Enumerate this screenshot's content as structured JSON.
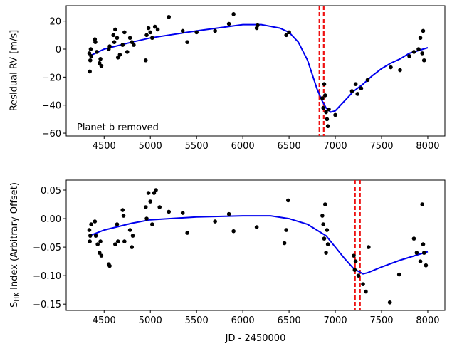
{
  "chart_data": [
    {
      "type": "scatter",
      "ylabel": "Residual RV [m/s]",
      "annotation": "Planet b removed",
      "xlim": [
        4090,
        8185
      ],
      "ylim": [
        -62,
        31
      ],
      "xticks": [
        4500,
        5000,
        5500,
        6000,
        6500,
        7000,
        7500,
        8000
      ],
      "yticks": [
        {
          "value": -60,
          "label": "−60"
        },
        {
          "value": -40,
          "label": "−40"
        },
        {
          "value": -20,
          "label": "−20"
        },
        0,
        20
      ],
      "points": {
        "color": "#000000",
        "x": [
          4340,
          4345,
          4350,
          4355,
          4360,
          4400,
          4405,
          4420,
          4450,
          4460,
          4470,
          4550,
          4560,
          4600,
          4610,
          4620,
          4640,
          4650,
          4670,
          4700,
          4720,
          4750,
          4780,
          4800,
          4820,
          4950,
          4960,
          4980,
          5000,
          5020,
          5050,
          5080,
          5200,
          5350,
          5400,
          5500,
          5700,
          5850,
          5900,
          6150,
          6160,
          6470,
          6500,
          6860,
          6870,
          6880,
          6890,
          6900,
          6910,
          6920,
          6930,
          7000,
          7180,
          7220,
          7240,
          7280,
          7350,
          7600,
          7700,
          7800,
          7850,
          7900,
          7920,
          7950,
          7960,
          7940
        ],
        "y": [
          -3,
          -16,
          -8,
          0,
          -5,
          7,
          5,
          -2,
          -10,
          -7,
          -12,
          0,
          2,
          10,
          5,
          14,
          8,
          -6,
          -4,
          3,
          12,
          -2,
          8,
          5,
          3,
          -8,
          10,
          15,
          12,
          8,
          16,
          14,
          23,
          13,
          5,
          12,
          13,
          18,
          25,
          15,
          17,
          10,
          12,
          -35,
          -42,
          -25,
          -33,
          -45,
          -50,
          -55,
          -43,
          -47,
          -30,
          -25,
          -32,
          -28,
          -22,
          -13,
          -15,
          -5,
          -2,
          0,
          8,
          13,
          -8,
          -3
        ]
      },
      "model": {
        "color": "#0000ee",
        "x": [
          4340,
          4500,
          4800,
          5000,
          5500,
          6000,
          6200,
          6400,
          6500,
          6600,
          6700,
          6800,
          6850,
          6900,
          6950,
          7000,
          7100,
          7200,
          7300,
          7400,
          7500,
          7600,
          7700,
          7800,
          7900,
          8000
        ],
        "y": [
          -5,
          0,
          5,
          8,
          13,
          17.5,
          17.5,
          15,
          12,
          5,
          -8,
          -28,
          -36,
          -42,
          -45,
          -44,
          -37,
          -30,
          -25,
          -19,
          -14,
          -10,
          -7,
          -3,
          -1,
          1
        ]
      },
      "vlines": {
        "color": "#ee1111",
        "x": [
          6828,
          6875
        ]
      }
    },
    {
      "type": "scatter",
      "ylabel_main": "S",
      "ylabel_sub": "HK",
      "ylabel_rest": " Index (Arbitrary Offset)",
      "xlabel": "JD - 2450000",
      "xlim": [
        4090,
        8185
      ],
      "ylim": [
        -0.161,
        0.0675
      ],
      "xticks": [
        4500,
        5000,
        5500,
        6000,
        6500,
        7000,
        7500,
        8000
      ],
      "yticks": [
        {
          "value": -0.15,
          "label": "−0.15"
        },
        {
          "value": -0.1,
          "label": "−0.10"
        },
        {
          "value": -0.05,
          "label": "−0.05"
        },
        {
          "value": 0,
          "label": "0.00"
        },
        0.05
      ],
      "points": {
        "color": "#000000",
        "x": [
          4340,
          4345,
          4350,
          4360,
          4400,
          4410,
          4430,
          4450,
          4460,
          4470,
          4550,
          4560,
          4620,
          4640,
          4650,
          4700,
          4710,
          4720,
          4780,
          4800,
          4810,
          4950,
          4960,
          4980,
          5000,
          5020,
          5040,
          5060,
          5100,
          5200,
          5350,
          5400,
          5700,
          5850,
          5900,
          6150,
          6450,
          6470,
          6490,
          6860,
          6870,
          6880,
          6890,
          6900,
          6910,
          6920,
          7200,
          7210,
          7220,
          7250,
          7300,
          7330,
          7360,
          7590,
          7690,
          7850,
          7880,
          7920,
          7940,
          7950,
          7960,
          7980
        ],
        "y": [
          -0.02,
          -0.04,
          -0.03,
          -0.01,
          -0.005,
          -0.03,
          -0.045,
          -0.06,
          -0.04,
          -0.065,
          -0.08,
          -0.083,
          -0.045,
          -0.01,
          -0.04,
          0.015,
          0.005,
          -0.04,
          -0.02,
          -0.05,
          -0.03,
          0.02,
          0.0,
          0.045,
          0.03,
          -0.01,
          0.045,
          0.05,
          0.02,
          0.012,
          0.01,
          -0.025,
          -0.005,
          0.008,
          -0.022,
          -0.015,
          -0.043,
          -0.02,
          0.032,
          0.005,
          -0.01,
          -0.035,
          0.025,
          -0.06,
          -0.02,
          -0.045,
          -0.065,
          -0.09,
          -0.075,
          -0.1,
          -0.115,
          -0.128,
          -0.05,
          -0.147,
          -0.098,
          -0.035,
          -0.06,
          -0.075,
          0.025,
          -0.045,
          -0.06,
          -0.082
        ]
      },
      "model": {
        "color": "#0000ee",
        "x": [
          4340,
          4500,
          4800,
          5000,
          5500,
          6000,
          6300,
          6500,
          6700,
          6900,
          7000,
          7100,
          7200,
          7300,
          7350,
          7500,
          7700,
          7900,
          8000
        ],
        "y": [
          -0.03,
          -0.02,
          -0.008,
          -0.002,
          0.003,
          0.005,
          0.005,
          0.0,
          -0.01,
          -0.03,
          -0.05,
          -0.07,
          -0.088,
          -0.097,
          -0.095,
          -0.085,
          -0.073,
          -0.063,
          -0.058
        ]
      },
      "vlines": {
        "color": "#ee1111",
        "x": [
          7213,
          7267
        ]
      }
    }
  ]
}
